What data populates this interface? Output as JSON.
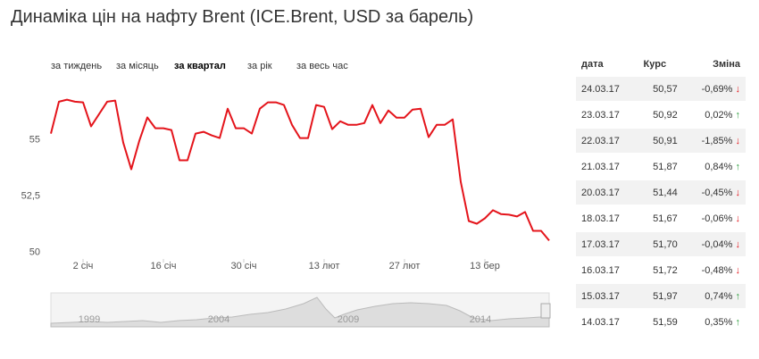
{
  "chart_data": {
    "type": "line",
    "title": "Динаміка цін на нафту Brent (ICE.Brent, USD за барель)",
    "tabs": [
      "за тиждень",
      "за місяць",
      "за квартал",
      "за рік",
      "за весь час"
    ],
    "active_tab": 2,
    "categories": [
      null,
      null,
      null,
      null,
      "2 січ",
      null,
      null,
      null,
      null,
      null,
      null,
      null,
      null,
      null,
      "16 січ",
      null,
      null,
      null,
      null,
      null,
      null,
      null,
      null,
      null,
      "30 січ",
      null,
      null,
      null,
      null,
      null,
      null,
      null,
      null,
      null,
      "13 лют",
      null,
      null,
      null,
      null,
      null,
      null,
      null,
      null,
      null,
      "27 лют",
      null,
      null,
      null,
      null,
      null,
      null,
      null,
      null,
      null,
      "13 бер",
      null,
      null,
      null,
      null,
      null,
      null,
      null,
      null
    ],
    "series": [
      {
        "name": "ICE.Brent",
        "color": "#e4141b",
        "values": [
          55.28,
          56.7,
          56.79,
          56.7,
          56.67,
          55.6,
          56.15,
          56.7,
          56.75,
          54.88,
          53.69,
          54.96,
          56.0,
          55.52,
          55.52,
          55.44,
          54.09,
          54.09,
          55.28,
          55.36,
          55.2,
          55.08,
          56.39,
          55.52,
          55.52,
          55.28,
          56.39,
          56.67,
          56.67,
          56.55,
          55.67,
          55.08,
          55.08,
          56.55,
          56.47,
          55.48,
          55.83,
          55.67,
          55.67,
          55.75,
          56.55,
          55.75,
          56.31,
          55.99,
          55.99,
          56.35,
          56.39,
          55.12,
          55.67,
          55.67,
          55.91,
          53.13,
          51.39,
          51.27,
          51.51,
          51.87,
          51.7,
          51.67,
          51.59,
          51.79,
          50.95,
          50.95,
          50.52
        ]
      }
    ],
    "ylim": [
      49.7,
      57.45
    ],
    "yticks": [
      50,
      {
        "value": 52.5,
        "label": "52,5"
      },
      55
    ],
    "grid": false,
    "navigator_labels": [
      "1999",
      "2004",
      "2009",
      "2014"
    ]
  },
  "table": {
    "header": [
      "дата",
      "Курс",
      "Зміна"
    ],
    "rows": [
      [
        "24.03.17",
        "50,57",
        "-0,69%",
        "↓"
      ],
      [
        "23.03.17",
        "50,92",
        "0,02%",
        "↑"
      ],
      [
        "22.03.17",
        "50,91",
        "-1,85%",
        "↓"
      ],
      [
        "21.03.17",
        "51,87",
        "0,84%",
        "↑"
      ],
      [
        "20.03.17",
        "51,44",
        "-0,45%",
        "↓"
      ],
      [
        "18.03.17",
        "51,67",
        "-0,06%",
        "↓"
      ],
      [
        "17.03.17",
        "51,70",
        "-0,04%",
        "↓"
      ],
      [
        "16.03.17",
        "51,72",
        "-0,48%",
        "↓"
      ],
      [
        "15.03.17",
        "51,97",
        "0,74%",
        "↑"
      ],
      [
        "14.03.17",
        "51,59",
        "0,35%",
        "↑"
      ]
    ]
  }
}
